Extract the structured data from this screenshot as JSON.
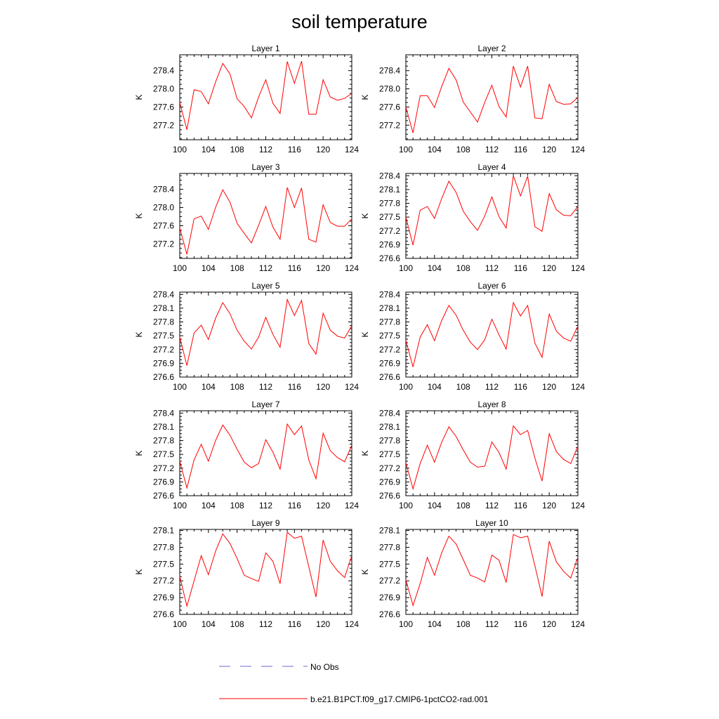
{
  "title": "soil temperature",
  "chart_data": [
    {
      "type": "line",
      "title": "Layer 1",
      "ylabel": "K",
      "xlim": [
        100,
        124
      ],
      "ylim": [
        276.88,
        278.75
      ],
      "xticks": [
        100,
        104,
        108,
        112,
        116,
        120,
        124
      ],
      "yticks": [
        277.2,
        277.6,
        278.0,
        278.4
      ],
      "ytick_labels": [
        "277.2",
        "277.6",
        "278.0",
        "278.4"
      ],
      "x": [
        100,
        101,
        102,
        103,
        104,
        105,
        106,
        107,
        108,
        109,
        110,
        111,
        112,
        113,
        114,
        115,
        116,
        117,
        118,
        119,
        120,
        121,
        122,
        123,
        124
      ],
      "series": [
        {
          "name": "b.e21.B1PCT.f09_g17.CMIP6-1pctCO2-rad.001",
          "values": [
            277.7,
            277.1,
            277.98,
            277.94,
            277.67,
            278.15,
            278.56,
            278.33,
            277.78,
            277.61,
            277.36,
            277.82,
            278.2,
            277.68,
            277.46,
            278.6,
            278.12,
            278.61,
            277.44,
            277.44,
            278.2,
            277.82,
            277.75,
            277.79,
            277.9
          ]
        }
      ]
    },
    {
      "type": "line",
      "title": "Layer 2",
      "ylabel": "K",
      "xlim": [
        100,
        124
      ],
      "ylim": [
        276.88,
        278.75
      ],
      "xticks": [
        100,
        104,
        108,
        112,
        116,
        120,
        124
      ],
      "yticks": [
        277.2,
        277.6,
        278.0,
        278.4
      ],
      "ytick_labels": [
        "277.2",
        "277.6",
        "278.0",
        "278.4"
      ],
      "x": [
        100,
        101,
        102,
        103,
        104,
        105,
        106,
        107,
        108,
        109,
        110,
        111,
        112,
        113,
        114,
        115,
        116,
        117,
        118,
        119,
        120,
        121,
        122,
        123,
        124
      ],
      "series": [
        {
          "name": "b.e21.B1PCT.f09_g17.CMIP6-1pctCO2-rad.001",
          "values": [
            277.6,
            277.03,
            277.85,
            277.85,
            277.59,
            278.05,
            278.45,
            278.2,
            277.71,
            277.49,
            277.27,
            277.7,
            278.08,
            277.61,
            277.38,
            278.5,
            278.04,
            278.5,
            277.36,
            277.34,
            278.1,
            277.72,
            277.66,
            277.67,
            277.81
          ]
        }
      ]
    },
    {
      "type": "line",
      "title": "Layer 3",
      "ylabel": "K",
      "xlim": [
        100,
        124
      ],
      "ylim": [
        276.88,
        278.75
      ],
      "xticks": [
        100,
        104,
        108,
        112,
        116,
        120,
        124
      ],
      "yticks": [
        277.2,
        277.6,
        278.0,
        278.4
      ],
      "ytick_labels": [
        "277.2",
        "277.6",
        "278.0",
        "278.4"
      ],
      "x": [
        100,
        101,
        102,
        103,
        104,
        105,
        106,
        107,
        108,
        109,
        110,
        111,
        112,
        113,
        114,
        115,
        116,
        117,
        118,
        119,
        120,
        121,
        122,
        123,
        124
      ],
      "series": [
        {
          "name": "b.e21.B1PCT.f09_g17.CMIP6-1pctCO2-rad.001",
          "values": [
            277.55,
            276.97,
            277.75,
            277.81,
            277.52,
            278.0,
            278.39,
            278.12,
            277.65,
            277.43,
            277.22,
            277.61,
            278.02,
            277.57,
            277.3,
            278.44,
            278.0,
            278.43,
            277.3,
            277.24,
            278.06,
            277.67,
            277.59,
            277.59,
            277.75
          ]
        }
      ]
    },
    {
      "type": "line",
      "title": "Layer 4",
      "ylabel": "K",
      "xlim": [
        100,
        124
      ],
      "ylim": [
        276.6,
        278.45
      ],
      "xticks": [
        100,
        104,
        108,
        112,
        116,
        120,
        124
      ],
      "yticks": [
        276.6,
        276.9,
        277.2,
        277.5,
        277.8,
        278.1,
        278.4
      ],
      "ytick_labels": [
        "276.6",
        "276.9",
        "277.2",
        "277.5",
        "277.8",
        "278.1",
        "278.4"
      ],
      "x": [
        100,
        101,
        102,
        103,
        104,
        105,
        106,
        107,
        108,
        109,
        110,
        111,
        112,
        113,
        114,
        115,
        116,
        117,
        118,
        119,
        120,
        121,
        122,
        123,
        124
      ],
      "series": [
        {
          "name": "b.e21.B1PCT.f09_g17.CMIP6-1pctCO2-rad.001",
          "values": [
            277.5,
            276.89,
            277.65,
            277.73,
            277.47,
            277.9,
            278.28,
            278.04,
            277.63,
            277.4,
            277.21,
            277.52,
            277.94,
            277.51,
            277.26,
            278.4,
            277.96,
            278.39,
            277.29,
            277.19,
            278.01,
            277.66,
            277.54,
            277.53,
            277.73
          ]
        }
      ]
    },
    {
      "type": "line",
      "title": "Layer 5",
      "ylabel": "K",
      "xlim": [
        100,
        124
      ],
      "ylim": [
        276.6,
        278.45
      ],
      "xticks": [
        100,
        104,
        108,
        112,
        116,
        120,
        124
      ],
      "yticks": [
        276.6,
        276.9,
        277.2,
        277.5,
        277.8,
        278.1,
        278.4
      ],
      "ytick_labels": [
        "276.6",
        "276.9",
        "277.2",
        "277.5",
        "277.8",
        "278.1",
        "278.4"
      ],
      "x": [
        100,
        101,
        102,
        103,
        104,
        105,
        106,
        107,
        108,
        109,
        110,
        111,
        112,
        113,
        114,
        115,
        116,
        117,
        118,
        119,
        120,
        121,
        122,
        123,
        124
      ],
      "series": [
        {
          "name": "b.e21.B1PCT.f09_g17.CMIP6-1pctCO2-rad.001",
          "values": [
            277.47,
            276.85,
            277.56,
            277.73,
            277.42,
            277.88,
            278.22,
            277.98,
            277.62,
            277.38,
            277.21,
            277.47,
            277.9,
            277.53,
            277.25,
            278.29,
            277.94,
            278.27,
            277.33,
            277.1,
            277.99,
            277.62,
            277.49,
            277.45,
            277.72
          ]
        }
      ]
    },
    {
      "type": "line",
      "title": "Layer 6",
      "ylabel": "K",
      "xlim": [
        100,
        124
      ],
      "ylim": [
        276.6,
        278.45
      ],
      "xticks": [
        100,
        104,
        108,
        112,
        116,
        120,
        124
      ],
      "yticks": [
        276.6,
        276.9,
        277.2,
        277.5,
        277.8,
        278.1,
        278.4
      ],
      "ytick_labels": [
        "276.6",
        "276.9",
        "277.2",
        "277.5",
        "277.8",
        "278.1",
        "278.4"
      ],
      "x": [
        100,
        101,
        102,
        103,
        104,
        105,
        106,
        107,
        108,
        109,
        110,
        111,
        112,
        113,
        114,
        115,
        116,
        117,
        118,
        119,
        120,
        121,
        122,
        123,
        124
      ],
      "series": [
        {
          "name": "b.e21.B1PCT.f09_g17.CMIP6-1pctCO2-rad.001",
          "values": [
            277.4,
            276.82,
            277.47,
            277.74,
            277.39,
            277.83,
            278.16,
            277.95,
            277.62,
            277.36,
            277.2,
            277.41,
            277.86,
            277.52,
            277.21,
            278.22,
            277.93,
            278.16,
            277.34,
            277.03,
            277.97,
            277.6,
            277.45,
            277.38,
            277.71
          ]
        }
      ]
    },
    {
      "type": "line",
      "title": "Layer 7",
      "ylabel": "K",
      "xlim": [
        100,
        124
      ],
      "ylim": [
        276.6,
        278.45
      ],
      "xticks": [
        100,
        104,
        108,
        112,
        116,
        120,
        124
      ],
      "yticks": [
        276.6,
        276.9,
        277.2,
        277.5,
        277.8,
        278.1,
        278.4
      ],
      "ytick_labels": [
        "276.6",
        "276.9",
        "277.2",
        "277.5",
        "277.8",
        "278.1",
        "278.4"
      ],
      "x": [
        100,
        101,
        102,
        103,
        104,
        105,
        106,
        107,
        108,
        109,
        110,
        111,
        112,
        113,
        114,
        115,
        116,
        117,
        118,
        119,
        120,
        121,
        122,
        123,
        124
      ],
      "series": [
        {
          "name": "b.e21.B1PCT.f09_g17.CMIP6-1pctCO2-rad.001",
          "values": [
            277.35,
            276.77,
            277.38,
            277.72,
            277.35,
            277.8,
            278.14,
            277.92,
            277.61,
            277.33,
            277.21,
            277.3,
            277.82,
            277.55,
            277.18,
            278.16,
            277.93,
            278.12,
            277.38,
            276.97,
            277.96,
            277.58,
            277.43,
            277.34,
            277.7
          ]
        }
      ]
    },
    {
      "type": "line",
      "title": "Layer 8",
      "ylabel": "K",
      "xlim": [
        100,
        124
      ],
      "ylim": [
        276.6,
        278.45
      ],
      "xticks": [
        100,
        104,
        108,
        112,
        116,
        120,
        124
      ],
      "yticks": [
        276.6,
        276.9,
        277.2,
        277.5,
        277.8,
        278.1,
        278.4
      ],
      "ytick_labels": [
        "276.6",
        "276.9",
        "277.2",
        "277.5",
        "277.8",
        "278.1",
        "278.4"
      ],
      "x": [
        100,
        101,
        102,
        103,
        104,
        105,
        106,
        107,
        108,
        109,
        110,
        111,
        112,
        113,
        114,
        115,
        116,
        117,
        118,
        119,
        120,
        121,
        122,
        123,
        124
      ],
      "series": [
        {
          "name": "b.e21.B1PCT.f09_g17.CMIP6-1pctCO2-rad.001",
          "values": [
            277.32,
            276.75,
            277.3,
            277.7,
            277.33,
            277.76,
            278.1,
            277.89,
            277.6,
            277.33,
            277.22,
            277.24,
            277.77,
            277.54,
            277.18,
            278.12,
            277.93,
            278.02,
            277.42,
            276.92,
            277.95,
            277.56,
            277.39,
            277.3,
            277.68
          ]
        }
      ]
    },
    {
      "type": "line",
      "title": "Layer 9",
      "ylabel": "K",
      "xlim": [
        100,
        124
      ],
      "ylim": [
        276.6,
        278.12
      ],
      "xticks": [
        100,
        104,
        108,
        112,
        116,
        120,
        124
      ],
      "yticks": [
        276.6,
        276.9,
        277.2,
        277.5,
        277.8,
        278.1
      ],
      "ytick_labels": [
        "276.6",
        "276.9",
        "277.2",
        "277.5",
        "277.8",
        "278.1"
      ],
      "x": [
        100,
        101,
        102,
        103,
        104,
        105,
        106,
        107,
        108,
        109,
        110,
        111,
        112,
        113,
        114,
        115,
        116,
        117,
        118,
        119,
        120,
        121,
        122,
        123,
        124
      ],
      "series": [
        {
          "name": "b.e21.B1PCT.f09_g17.CMIP6-1pctCO2-rad.001",
          "values": [
            277.28,
            276.75,
            277.2,
            277.65,
            277.31,
            277.73,
            278.04,
            277.87,
            277.6,
            277.3,
            277.24,
            277.19,
            277.7,
            277.55,
            277.15,
            278.07,
            277.96,
            278.0,
            277.45,
            276.91,
            277.93,
            277.55,
            277.38,
            277.26,
            277.65
          ]
        }
      ]
    },
    {
      "type": "line",
      "title": "Layer 10",
      "ylabel": "K",
      "xlim": [
        100,
        124
      ],
      "ylim": [
        276.6,
        278.12
      ],
      "xticks": [
        100,
        104,
        108,
        112,
        116,
        120,
        124
      ],
      "yticks": [
        276.6,
        276.9,
        277.2,
        277.5,
        277.8,
        278.1
      ],
      "ytick_labels": [
        "276.6",
        "276.9",
        "277.2",
        "277.5",
        "277.8",
        "278.1"
      ],
      "x": [
        100,
        101,
        102,
        103,
        104,
        105,
        106,
        107,
        108,
        109,
        110,
        111,
        112,
        113,
        114,
        115,
        116,
        117,
        118,
        119,
        120,
        121,
        122,
        123,
        124
      ],
      "series": [
        {
          "name": "b.e21.B1PCT.f09_g17.CMIP6-1pctCO2-rad.001",
          "values": [
            277.22,
            276.76,
            277.15,
            277.62,
            277.3,
            277.7,
            278.0,
            277.86,
            277.58,
            277.3,
            277.25,
            277.18,
            277.66,
            277.57,
            277.17,
            278.03,
            277.97,
            278.0,
            277.47,
            276.92,
            277.91,
            277.54,
            277.37,
            277.25,
            277.62
          ]
        }
      ]
    }
  ],
  "legend": [
    {
      "label": "No Obs",
      "color": "#6a6ad6",
      "style": "dashed"
    },
    {
      "label": "b.e21.B1PCT.f09_g17.CMIP6-1pctCO2-rad.001",
      "color": "#ff0000",
      "style": "solid"
    }
  ]
}
